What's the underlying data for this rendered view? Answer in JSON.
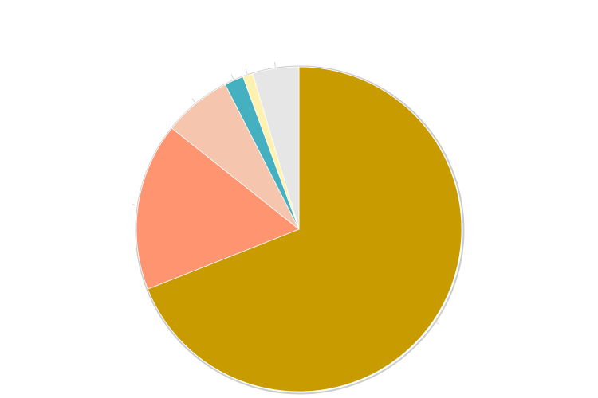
{
  "chart_data": {
    "type": "pie",
    "start": "12 o'clock",
    "direction": "clockwise",
    "slices": [
      {
        "value": 69.0,
        "color": "#c89b00"
      },
      {
        "value": 16.7,
        "color": "#ff9470"
      },
      {
        "value": 6.8,
        "color": "#f5c5ad"
      },
      {
        "value": 1.9,
        "color": "#45b0bf"
      },
      {
        "value": 1.0,
        "color": "#fff2b0"
      },
      {
        "value": 4.6,
        "color": "#e6e6e6"
      }
    ],
    "slice_stroke": "#ffffff",
    "outline_color": "#cccccc",
    "leader_color": "#c8c8c8"
  }
}
